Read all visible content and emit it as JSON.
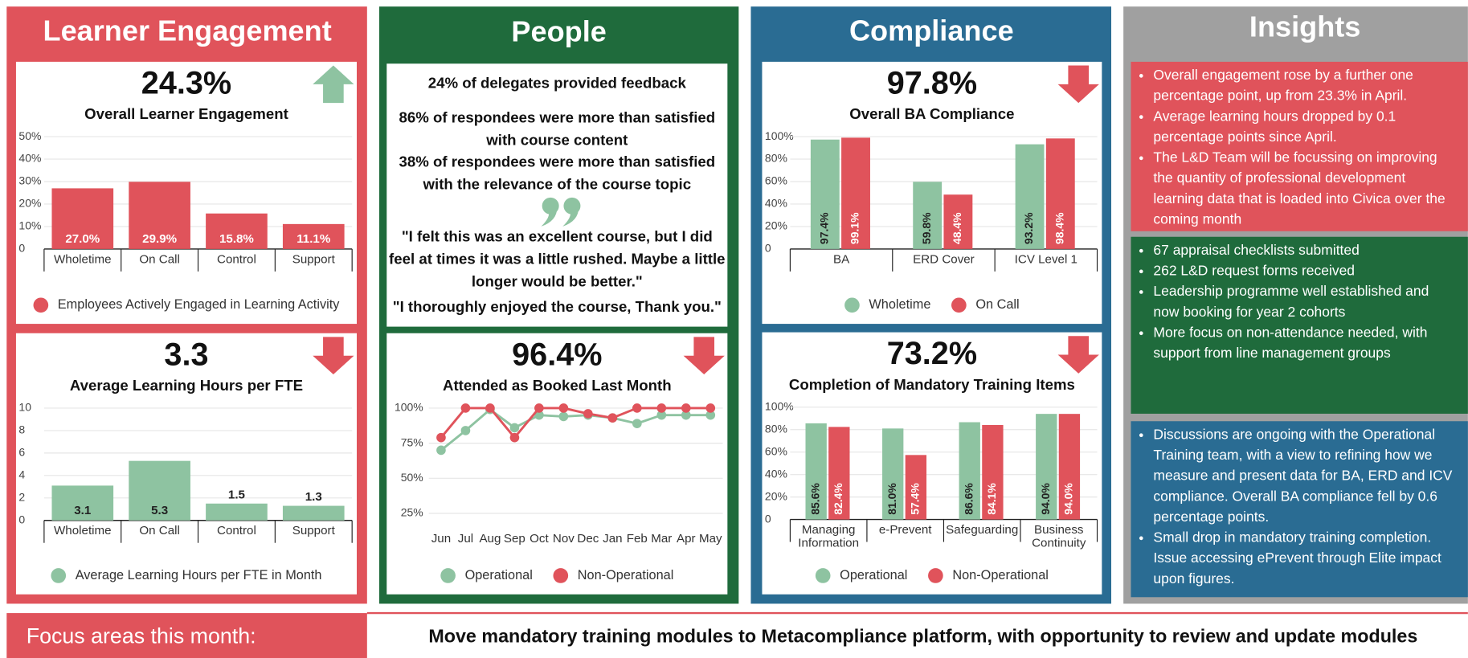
{
  "panels": [
    {
      "title": "Learner Engagement"
    },
    {
      "title": "People"
    },
    {
      "title": "Compliance"
    },
    {
      "title": "Insights"
    }
  ],
  "feedback": {
    "stats": [
      "24% of delegates provided feedback",
      "86% of respondees were more than satisfied with course content",
      "38% of respondees were more than satisfied with the relevance of the course topic"
    ],
    "quotes": [
      "\"I felt this was an excellent course, but I did feel at times it was a little rushed. Maybe a little longer would be better.\"",
      "\"I thoroughly enjoyed the course, Thank you.\""
    ]
  },
  "insights": [
    [
      "Overall engagement rose by a further one percentage point, up from 23.3% in April.",
      "Average learning hours dropped by 0.1 percentage points since April.",
      "The L&D Team will be focussing on improving the quantity of professional development learning data that is loaded into Civica over the coming month"
    ],
    [
      "67 appraisal checklists submitted",
      "262 L&D request forms received",
      "Leadership programme well established and now booking for year 2 cohorts",
      "More focus on non-attendance needed, with support from line management groups"
    ],
    [
      "Discussions are ongoing with the Operational Training team, with a view to refining how we measure and present data for BA, ERD and ICV compliance. Overall BA compliance fell by 0.6 percentage points.",
      "Small drop in mandatory training completion. Issue accessing ePrevent through Elite impact upon figures."
    ]
  ],
  "focus": {
    "label": "Focus areas this month:",
    "text": "Move mandatory training modules to Metacompliance platform, with opportunity to review and update modules"
  },
  "chart_data": [
    {
      "type": "bar",
      "headline": "24.3%",
      "title": "Overall Learner Engagement",
      "trend": "up",
      "categories": [
        "Wholetime",
        "On Call",
        "Control",
        "Support"
      ],
      "series": [
        {
          "name": "Employees Actively Engaged in Learning Activity",
          "color": "#e0535b",
          "values": [
            27.0,
            29.9,
            15.8,
            11.1
          ],
          "value_labels": [
            "27.0%",
            "29.9%",
            "15.8%",
            "11.1%"
          ]
        }
      ],
      "ylim": [
        0,
        50
      ],
      "yticks": [
        0,
        {
          "value": 10,
          "label": "10%"
        },
        {
          "value": 20,
          "label": "20%"
        },
        {
          "value": 30,
          "label": "30%"
        },
        {
          "value": 40,
          "label": "40%"
        },
        {
          "value": 50,
          "label": "50%"
        }
      ],
      "grid": true
    },
    {
      "type": "bar",
      "headline": "3.3",
      "title": "Average Learning Hours per FTE",
      "trend": "down",
      "categories": [
        "Wholetime",
        "On Call",
        "Control",
        "Support"
      ],
      "series": [
        {
          "name": "Average Learning Hours per FTE in Month",
          "color": "#8ec3a1",
          "values": [
            3.1,
            5.3,
            1.5,
            1.3
          ]
        }
      ],
      "ylim": [
        0,
        10
      ],
      "yticks": [
        0,
        2,
        4,
        6,
        8,
        10
      ],
      "grid": true
    },
    {
      "type": "line",
      "headline": "96.4%",
      "title": "Attended as Booked Last Month",
      "trend": "down",
      "categories": [
        "Jun",
        "Jul",
        "Aug",
        "Sep",
        "Oct",
        "Nov",
        "Dec",
        "Jan",
        "Feb",
        "Mar",
        "Apr",
        "May"
      ],
      "series": [
        {
          "name": "Operational",
          "color": "#8ec3a1",
          "values": [
            70,
            84,
            99,
            86,
            95,
            94,
            95,
            93,
            89,
            95,
            95,
            95
          ]
        },
        {
          "name": "Non-Operational",
          "color": "#e0535b",
          "values": [
            79,
            100,
            100,
            79,
            100,
            100,
            96,
            93,
            100,
            100,
            100,
            100
          ]
        }
      ],
      "ylim": [
        20,
        100
      ],
      "yticks": [
        {
          "value": 25,
          "label": "25%"
        },
        {
          "value": 50,
          "label": "50%"
        },
        {
          "value": 75,
          "label": "75%"
        },
        {
          "value": 100,
          "label": "100%"
        }
      ],
      "grid": true
    },
    {
      "type": "bar",
      "headline": "97.8%",
      "title": "Overall BA Compliance",
      "trend": "down",
      "categories": [
        "BA",
        "ERD Cover",
        "ICV Level 1"
      ],
      "series": [
        {
          "name": "Wholetime",
          "color": "#8ec3a1",
          "values": [
            97.4,
            59.8,
            93.2
          ],
          "value_labels": [
            "97.4%",
            "59.8%",
            "93.2%"
          ]
        },
        {
          "name": "On Call",
          "color": "#e0535b",
          "values": [
            99.1,
            48.4,
            98.4
          ],
          "value_labels": [
            "99.1%",
            "48.4%",
            "98.4%"
          ]
        }
      ],
      "ylim": [
        0,
        100
      ],
      "yticks": [
        0,
        {
          "value": 20,
          "label": "20%"
        },
        {
          "value": 40,
          "label": "40%"
        },
        {
          "value": 60,
          "label": "60%"
        },
        {
          "value": 80,
          "label": "80%"
        },
        {
          "value": 100,
          "label": "100%"
        }
      ],
      "grid": true
    },
    {
      "type": "bar",
      "headline": "73.2%",
      "title": "Completion of Mandatory Training Items",
      "trend": "down",
      "categories": [
        "Managing Information",
        "e-Prevent",
        "Safeguarding",
        "Business Continuity"
      ],
      "series": [
        {
          "name": "Operational",
          "color": "#8ec3a1",
          "values": [
            85.6,
            81.0,
            86.6,
            94.0
          ],
          "value_labels": [
            "85.6%",
            "81.0%",
            "86.6%",
            "94.0%"
          ]
        },
        {
          "name": "Non-Operational",
          "color": "#e0535b",
          "values": [
            82.4,
            57.4,
            84.1,
            94.0
          ],
          "value_labels": [
            "82.4%",
            "57.4%",
            "84.1%",
            "94.0%"
          ]
        }
      ],
      "ylim": [
        0,
        100
      ],
      "yticks": [
        0,
        {
          "value": 20,
          "label": "20%"
        },
        {
          "value": 40,
          "label": "40%"
        },
        {
          "value": 60,
          "label": "60%"
        },
        {
          "value": 80,
          "label": "80%"
        },
        {
          "value": 100,
          "label": "100%"
        }
      ],
      "grid": true
    }
  ]
}
